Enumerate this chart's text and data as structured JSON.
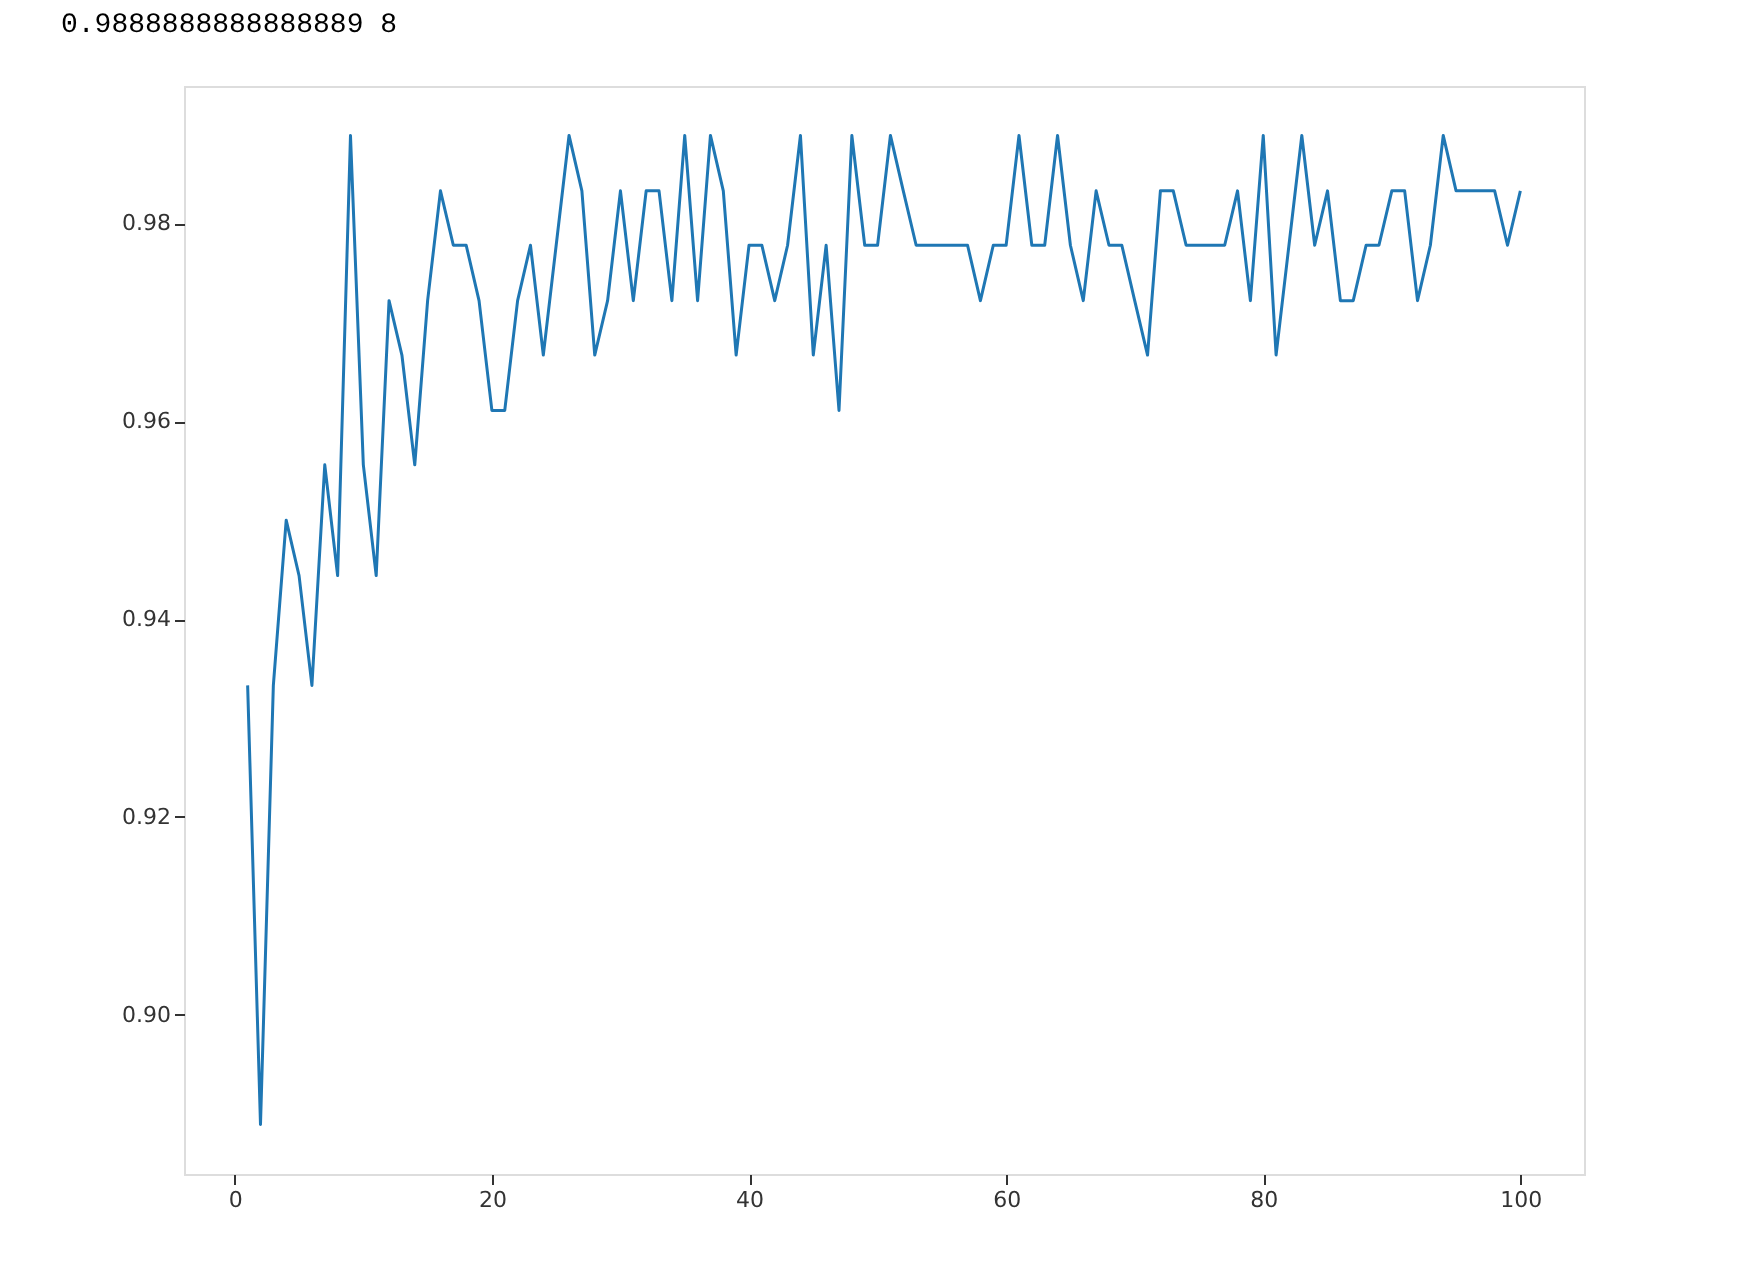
{
  "chart_data": {
    "type": "line",
    "annotations": [
      "0.9888888888888889 8"
    ],
    "x": [
      1,
      2,
      3,
      4,
      5,
      6,
      7,
      8,
      9,
      10,
      11,
      12,
      13,
      14,
      15,
      16,
      17,
      18,
      19,
      20,
      21,
      22,
      23,
      24,
      25,
      26,
      27,
      28,
      29,
      30,
      31,
      32,
      33,
      34,
      35,
      36,
      37,
      38,
      39,
      40,
      41,
      42,
      43,
      44,
      45,
      46,
      47,
      48,
      49,
      50,
      51,
      52,
      53,
      54,
      55,
      56,
      57,
      58,
      59,
      60,
      61,
      62,
      63,
      64,
      65,
      66,
      67,
      68,
      69,
      70,
      71,
      72,
      73,
      74,
      75,
      76,
      77,
      78,
      79,
      80,
      81,
      82,
      83,
      84,
      85,
      86,
      87,
      88,
      89,
      90,
      91,
      92,
      93,
      94,
      95,
      96,
      97,
      98,
      99,
      100
    ],
    "series": [
      {
        "color": "#1f77b4",
        "values": [
          0.9333,
          0.8889,
          0.9333,
          0.95,
          0.9444,
          0.9333,
          0.9556,
          0.9444,
          0.9889,
          0.9556,
          0.9444,
          0.9722,
          0.9667,
          0.9556,
          0.9722,
          0.9833,
          0.9778,
          0.9778,
          0.9722,
          0.9611,
          0.9611,
          0.9722,
          0.9778,
          0.9667,
          0.9778,
          0.9889,
          0.9833,
          0.9667,
          0.9722,
          0.9833,
          0.9722,
          0.9833,
          0.9833,
          0.9722,
          0.9889,
          0.9722,
          0.9889,
          0.9833,
          0.9667,
          0.9778,
          0.9778,
          0.9722,
          0.9778,
          0.9889,
          0.9667,
          0.9778,
          0.9611,
          0.9889,
          0.9778,
          0.9778,
          0.9889,
          0.9833,
          0.9778,
          0.9778,
          0.9778,
          0.9778,
          0.9778,
          0.9722,
          0.9778,
          0.9778,
          0.9889,
          0.9778,
          0.9778,
          0.9889,
          0.9778,
          0.9722,
          0.9833,
          0.9778,
          0.9778,
          0.9722,
          0.9667,
          0.9833,
          0.9833,
          0.9778,
          0.9778,
          0.9778,
          0.9778,
          0.9833,
          0.9722,
          0.9889,
          0.9667,
          0.9778,
          0.9889,
          0.9778,
          0.9833,
          0.9722,
          0.9722,
          0.9778,
          0.9778,
          0.9833,
          0.9833,
          0.9722,
          0.9778,
          0.9889,
          0.9833,
          0.9833,
          0.9833,
          0.9833,
          0.9778,
          0.9833
        ]
      }
    ],
    "xlim": [
      -3.95,
      104.95
    ],
    "ylim": [
      0.8839,
      0.9939
    ],
    "xticks": [
      0,
      20,
      40,
      60,
      80,
      100
    ],
    "yticks": [
      {
        "value": 0.9,
        "label": "0.90"
      },
      {
        "value": 0.92,
        "label": "0.92"
      },
      {
        "value": 0.94,
        "label": "0.94"
      },
      {
        "value": 0.96,
        "label": "0.96"
      },
      {
        "value": 0.98,
        "label": "0.98"
      }
    ],
    "grid": false,
    "marker": "none",
    "line_style": "solid"
  }
}
